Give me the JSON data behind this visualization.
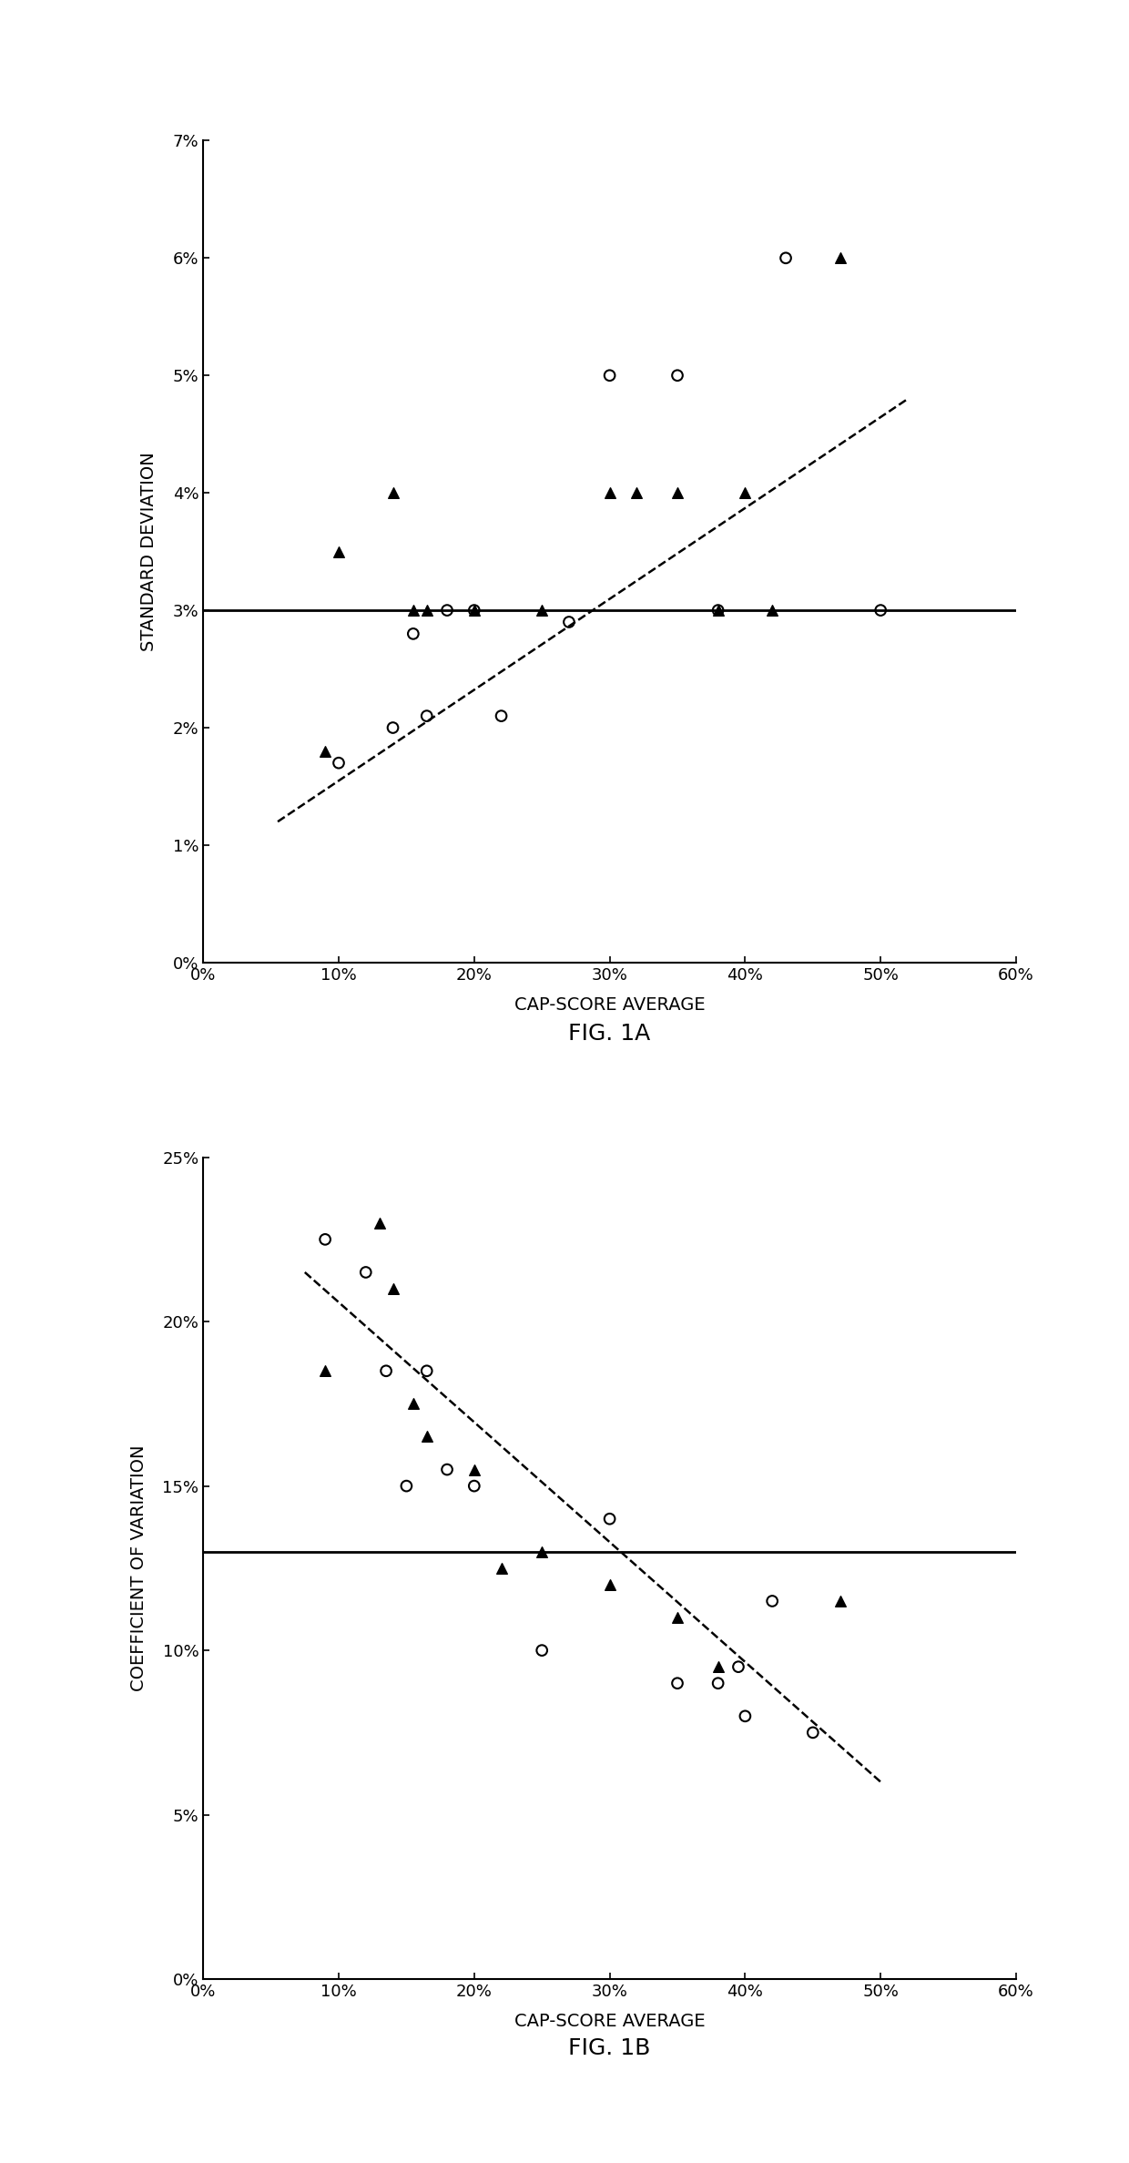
{
  "fig1a": {
    "title": "FIG. 1A",
    "xlabel": "CAP-SCORE AVERAGE",
    "ylabel": "STANDARD DEVIATION",
    "xlim": [
      0,
      0.6
    ],
    "ylim": [
      0,
      0.07
    ],
    "xticks": [
      0,
      0.1,
      0.2,
      0.3,
      0.4,
      0.5,
      0.6
    ],
    "yticks": [
      0,
      0.01,
      0.02,
      0.03,
      0.04,
      0.05,
      0.06,
      0.07
    ],
    "hline_y": 0.03,
    "dashed_line": {
      "x0": 0.055,
      "y0": 0.012,
      "x1": 0.52,
      "y1": 0.048
    },
    "circles_x": [
      0.1,
      0.14,
      0.155,
      0.165,
      0.18,
      0.2,
      0.22,
      0.27,
      0.3,
      0.35,
      0.38,
      0.43,
      0.5
    ],
    "circles_y": [
      0.017,
      0.02,
      0.028,
      0.021,
      0.03,
      0.03,
      0.021,
      0.029,
      0.05,
      0.05,
      0.03,
      0.06,
      0.03
    ],
    "triangles_x": [
      0.09,
      0.1,
      0.14,
      0.155,
      0.165,
      0.2,
      0.25,
      0.3,
      0.32,
      0.35,
      0.38,
      0.4,
      0.42,
      0.47
    ],
    "triangles_y": [
      0.018,
      0.035,
      0.04,
      0.03,
      0.03,
      0.03,
      0.03,
      0.04,
      0.04,
      0.04,
      0.03,
      0.04,
      0.03,
      0.06
    ]
  },
  "fig1b": {
    "title": "FIG. 1B",
    "xlabel": "CAP-SCORE AVERAGE",
    "ylabel": "COEFFICIENT OF VARIATION",
    "xlim": [
      0,
      0.6
    ],
    "ylim": [
      0,
      0.25
    ],
    "xticks": [
      0,
      0.1,
      0.2,
      0.3,
      0.4,
      0.5,
      0.6
    ],
    "yticks": [
      0,
      0.05,
      0.1,
      0.15,
      0.2,
      0.25
    ],
    "hline_y": 0.13,
    "dashed_line": {
      "x0": 0.075,
      "y0": 0.215,
      "x1": 0.5,
      "y1": 0.06
    },
    "circles_x": [
      0.09,
      0.12,
      0.135,
      0.15,
      0.165,
      0.18,
      0.2,
      0.25,
      0.3,
      0.35,
      0.38,
      0.395,
      0.4,
      0.42,
      0.45
    ],
    "circles_y": [
      0.225,
      0.215,
      0.185,
      0.15,
      0.185,
      0.155,
      0.15,
      0.1,
      0.14,
      0.09,
      0.09,
      0.095,
      0.08,
      0.115,
      0.075
    ],
    "triangles_x": [
      0.09,
      0.13,
      0.14,
      0.155,
      0.165,
      0.2,
      0.22,
      0.25,
      0.3,
      0.35,
      0.38,
      0.47
    ],
    "triangles_y": [
      0.185,
      0.23,
      0.21,
      0.175,
      0.165,
      0.155,
      0.125,
      0.13,
      0.12,
      0.11,
      0.095,
      0.115
    ]
  },
  "marker_size": 70,
  "line_color": "#000000",
  "dashed_color": "#000000",
  "bg_color": "#ffffff",
  "title_fontsize": 18,
  "label_fontsize": 14,
  "tick_fontsize": 13
}
